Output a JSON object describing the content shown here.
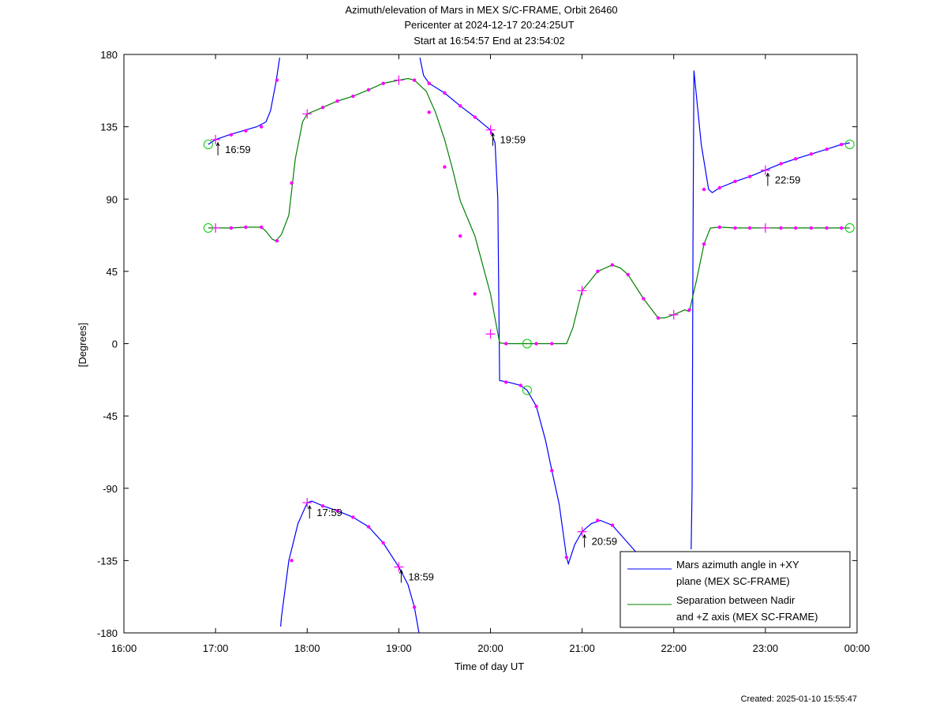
{
  "chart_data": {
    "type": "line",
    "title": [
      "Azimuth/elevation of Mars in MEX S/C-FRAME,  Orbit 26460",
      "Pericenter at 2024-12-17 20:24:25UT",
      "Start at 16:54:57 End at 23:54:02"
    ],
    "xlabel": "Time of day UT",
    "ylabel": "[Degrees]",
    "xlim": [
      16.0,
      24.0
    ],
    "ylim": [
      -180,
      180
    ],
    "xticks": [
      16,
      17,
      18,
      19,
      20,
      21,
      22,
      23,
      24
    ],
    "xtick_labels": [
      "16:00",
      "17:00",
      "18:00",
      "19:00",
      "20:00",
      "21:00",
      "22:00",
      "23:00",
      "00:00"
    ],
    "yticks": [
      180,
      135,
      90,
      45,
      0,
      -45,
      -90,
      -135,
      -180
    ],
    "ytick_labels": [
      "180",
      "135",
      "90",
      "45",
      "0",
      "-45",
      "-90",
      "-135",
      "-180"
    ],
    "legend_position": "bottom-right",
    "series": [
      {
        "name": "Mars azimuth angle in +XY plane (MEX SC-FRAME)",
        "legend_lines": [
          "Mars azimuth angle in +XY",
          "plane (MEX SC-FRAME)"
        ],
        "color": "#0000ff",
        "segments": [
          [
            [
              16.92,
              124
            ],
            [
              17.0,
              127
            ],
            [
              17.15,
              130
            ],
            [
              17.3,
              132.5
            ],
            [
              17.45,
              135
            ],
            [
              17.55,
              138
            ],
            [
              17.6,
              145
            ],
            [
              17.66,
              163
            ],
            [
              17.7,
              178
            ]
          ],
          [
            [
              17.71,
              -176
            ],
            [
              17.72,
              -170
            ],
            [
              17.8,
              -135
            ],
            [
              17.9,
              -112
            ],
            [
              18.0,
              -99
            ],
            [
              18.05,
              -98
            ],
            [
              18.17,
              -101
            ],
            [
              18.33,
              -104
            ],
            [
              18.5,
              -108
            ],
            [
              18.67,
              -114
            ],
            [
              18.83,
              -124
            ],
            [
              19.0,
              -139
            ],
            [
              19.1,
              -150
            ],
            [
              19.17,
              -164
            ],
            [
              19.22,
              -180
            ]
          ],
          [
            [
              19.23,
              178
            ],
            [
              19.27,
              167
            ],
            [
              19.33,
              162
            ],
            [
              19.5,
              156
            ],
            [
              19.67,
              148
            ],
            [
              19.83,
              141
            ],
            [
              20.0,
              133
            ],
            [
              20.05,
              125
            ],
            [
              20.08,
              90
            ],
            [
              20.1,
              -23
            ],
            [
              20.2,
              -24
            ],
            [
              20.33,
              -26
            ],
            [
              20.4,
              -29
            ],
            [
              20.5,
              -39
            ],
            [
              20.6,
              -60
            ],
            [
              20.67,
              -79
            ],
            [
              20.75,
              -100
            ],
            [
              20.83,
              -133
            ],
            [
              20.85,
              -137
            ],
            [
              20.92,
              -125
            ],
            [
              21.0,
              -117
            ],
            [
              21.1,
              -112
            ],
            [
              21.2,
              -110
            ],
            [
              21.33,
              -113
            ],
            [
              21.5,
              -124
            ],
            [
              21.67,
              -135
            ]
          ],
          [
            [
              22.19,
              -128
            ],
            [
              22.2,
              -90
            ],
            [
              22.21,
              60
            ],
            [
              22.22,
              170
            ],
            [
              22.3,
              124
            ],
            [
              22.38,
              96
            ],
            [
              22.42,
              94
            ],
            [
              22.5,
              97
            ],
            [
              22.67,
              101
            ],
            [
              22.83,
              104
            ],
            [
              23.0,
              108
            ],
            [
              23.17,
              112
            ],
            [
              23.33,
              115
            ],
            [
              23.5,
              118
            ],
            [
              23.67,
              121
            ],
            [
              23.83,
              124
            ],
            [
              23.92,
              125
            ]
          ]
        ]
      },
      {
        "name": "Separation between Nadir and +Z axis (MEX SC-FRAME)",
        "legend_lines": [
          "Separation between Nadir",
          "and +Z axis (MEX SC-FRAME)"
        ],
        "color": "#008000",
        "segments": [
          [
            [
              16.92,
              72
            ],
            [
              17.0,
              72
            ],
            [
              17.17,
              72
            ],
            [
              17.33,
              72.5
            ],
            [
              17.5,
              72.5
            ],
            [
              17.55,
              70
            ],
            [
              17.62,
              65
            ],
            [
              17.66,
              64
            ],
            [
              17.72,
              68
            ],
            [
              17.8,
              80
            ],
            [
              17.87,
              115
            ],
            [
              17.95,
              138
            ],
            [
              18.0,
              143
            ],
            [
              18.17,
              147
            ],
            [
              18.33,
              151
            ],
            [
              18.5,
              154
            ],
            [
              18.67,
              158
            ],
            [
              18.83,
              162
            ],
            [
              19.0,
              164
            ],
            [
              19.1,
              165
            ],
            [
              19.17,
              164
            ],
            [
              19.3,
              157
            ],
            [
              19.4,
              144
            ],
            [
              19.5,
              127
            ],
            [
              19.58,
              110
            ],
            [
              19.67,
              89
            ],
            [
              19.83,
              67
            ],
            [
              20.0,
              31
            ],
            [
              20.1,
              0.5
            ],
            [
              20.17,
              0
            ],
            [
              20.33,
              0
            ],
            [
              20.4,
              0
            ],
            [
              20.5,
              0
            ],
            [
              20.67,
              0
            ],
            [
              20.83,
              0
            ],
            [
              20.9,
              10
            ],
            [
              21.0,
              33
            ],
            [
              21.1,
              40
            ],
            [
              21.17,
              45
            ],
            [
              21.33,
              49
            ],
            [
              21.42,
              47
            ],
            [
              21.5,
              43
            ],
            [
              21.67,
              28
            ],
            [
              21.83,
              16
            ],
            [
              21.9,
              16
            ],
            [
              22.0,
              18
            ],
            [
              22.12,
              21
            ],
            [
              22.17,
              20
            ],
            [
              22.25,
              40
            ],
            [
              22.33,
              62
            ],
            [
              22.4,
              72
            ],
            [
              22.5,
              72.5
            ],
            [
              22.67,
              72
            ],
            [
              22.83,
              72
            ],
            [
              23.0,
              72
            ],
            [
              23.17,
              72
            ],
            [
              23.33,
              72
            ],
            [
              23.5,
              72
            ],
            [
              23.67,
              72
            ],
            [
              23.83,
              72
            ],
            [
              23.92,
              72
            ]
          ]
        ]
      }
    ],
    "markers": {
      "color": "#ff00ff",
      "dots": [
        [
          17.17,
          130
        ],
        [
          17.33,
          132.5
        ],
        [
          17.5,
          135
        ],
        [
          17.67,
          164
        ],
        [
          17.83,
          -135
        ],
        [
          18.17,
          -101
        ],
        [
          18.33,
          -104
        ],
        [
          18.5,
          -108
        ],
        [
          18.67,
          -114
        ],
        [
          18.83,
          -124
        ],
        [
          19.17,
          -164
        ],
        [
          19.33,
          162
        ],
        [
          19.5,
          156
        ],
        [
          19.67,
          148
        ],
        [
          19.83,
          141
        ],
        [
          20.17,
          -24
        ],
        [
          20.33,
          -26
        ],
        [
          20.5,
          -39
        ],
        [
          20.67,
          -79
        ],
        [
          20.83,
          -133
        ],
        [
          21.17,
          -110
        ],
        [
          21.33,
          -113
        ],
        [
          22.33,
          96
        ],
        [
          22.5,
          97
        ],
        [
          22.67,
          101
        ],
        [
          22.83,
          104
        ],
        [
          23.17,
          112
        ],
        [
          23.33,
          115
        ],
        [
          23.5,
          118
        ],
        [
          23.67,
          121
        ],
        [
          23.83,
          124
        ],
        [
          17.17,
          72
        ],
        [
          17.33,
          72.5
        ],
        [
          17.5,
          72.5
        ],
        [
          17.67,
          64
        ],
        [
          17.83,
          100
        ],
        [
          18.17,
          147
        ],
        [
          18.33,
          151
        ],
        [
          18.5,
          154
        ],
        [
          18.67,
          158
        ],
        [
          18.83,
          162
        ],
        [
          19.17,
          164
        ],
        [
          19.33,
          144
        ],
        [
          19.5,
          110
        ],
        [
          19.67,
          67
        ],
        [
          19.83,
          31
        ],
        [
          20.17,
          0
        ],
        [
          20.5,
          0
        ],
        [
          20.67,
          0
        ],
        [
          21.17,
          45
        ],
        [
          21.33,
          49
        ],
        [
          21.5,
          43
        ],
        [
          21.67,
          28
        ],
        [
          21.83,
          16
        ],
        [
          22.17,
          21
        ],
        [
          22.33,
          62
        ],
        [
          22.5,
          72.5
        ],
        [
          22.67,
          72
        ],
        [
          22.83,
          72
        ],
        [
          23.17,
          72
        ],
        [
          23.33,
          72
        ],
        [
          23.5,
          72
        ],
        [
          23.67,
          72
        ],
        [
          23.83,
          72
        ]
      ],
      "plus": [
        [
          17.0,
          127
        ],
        [
          18.0,
          143
        ],
        [
          19.0,
          164
        ],
        [
          20.0,
          133
        ],
        [
          23.0,
          108
        ],
        [
          17.0,
          72
        ],
        [
          18.0,
          -99
        ],
        [
          19.0,
          -139
        ],
        [
          20.0,
          6
        ],
        [
          21.0,
          33
        ],
        [
          21.0,
          -117
        ],
        [
          22.0,
          18
        ],
        [
          23.0,
          72
        ]
      ],
      "circles_color": "#00cc00",
      "circles": [
        [
          16.92,
          124
        ],
        [
          16.92,
          72
        ],
        [
          20.4,
          0
        ],
        [
          20.4,
          -29
        ],
        [
          23.92,
          124
        ],
        [
          23.92,
          72
        ]
      ]
    },
    "annotations": [
      {
        "text": "16:59",
        "x": 17.0,
        "y": 127
      },
      {
        "text": "17:59",
        "x": 18.0,
        "y": -99
      },
      {
        "text": "18:59",
        "x": 19.0,
        "y": -139
      },
      {
        "text": "19:59",
        "x": 20.0,
        "y": 133
      },
      {
        "text": "20:59",
        "x": 21.0,
        "y": -117
      },
      {
        "text": "22:59",
        "x": 23.0,
        "y": 108
      }
    ],
    "footer": "Created: 2025-01-10 15:55:47"
  }
}
